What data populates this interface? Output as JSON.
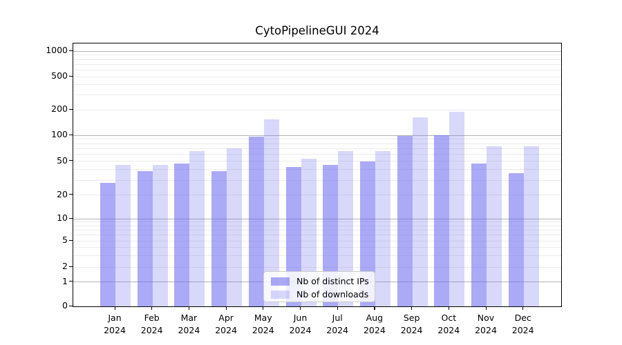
{
  "title": "CytoPipelineGUI 2024",
  "legend": {
    "items": [
      {
        "label": "Nb of distinct IPs"
      },
      {
        "label": "Nb of downloads"
      }
    ]
  },
  "axes": {
    "y_tick_labels": [
      "0",
      "1",
      "2",
      "5",
      "10",
      "20",
      "50",
      "100",
      "200",
      "500",
      "1000"
    ],
    "x_months": [
      "Jan",
      "Feb",
      "Mar",
      "Apr",
      "May",
      "Jun",
      "Jul",
      "Aug",
      "Sep",
      "Oct",
      "Nov",
      "Dec"
    ],
    "x_year": "2024"
  },
  "chart_data": {
    "type": "bar",
    "title": "CytoPipelineGUI 2024",
    "categories": [
      "Jan 2024",
      "Feb 2024",
      "Mar 2024",
      "Apr 2024",
      "May 2024",
      "Jun 2024",
      "Jul 2024",
      "Aug 2024",
      "Sep 2024",
      "Oct 2024",
      "Nov 2024",
      "Dec 2024"
    ],
    "series": [
      {
        "name": "Nb of distinct IPs",
        "color": "rgba(100,100,240,0.55)",
        "values": [
          28,
          38,
          47,
          38,
          96,
          43,
          45,
          50,
          98,
          100,
          47,
          36
        ]
      },
      {
        "name": "Nb of downloads",
        "color": "rgba(100,100,240,0.25)",
        "values": [
          45,
          45,
          66,
          70,
          155,
          54,
          65,
          66,
          164,
          190,
          75,
          75
        ]
      }
    ],
    "xlabel": "",
    "ylabel": "",
    "yscale": "log-like (compressed near zero)",
    "yticks": [
      0,
      1,
      2,
      5,
      10,
      20,
      50,
      100,
      200,
      500,
      1000
    ],
    "ylim": [
      0,
      1400
    ],
    "grid": {
      "orientation": "horizontal",
      "major_at": [
        1,
        10,
        100,
        1000
      ],
      "minor_at": [
        2,
        3,
        4,
        5,
        6,
        7,
        8,
        9,
        20,
        30,
        40,
        50,
        60,
        70,
        80,
        90,
        200,
        300,
        400,
        500,
        600,
        700,
        800,
        900
      ],
      "major_color": "#b4b4b4",
      "minor_color": "#ebebeb"
    },
    "legend_position": "lower center",
    "frame": "full box, black spines",
    "background": "#ffffff"
  }
}
